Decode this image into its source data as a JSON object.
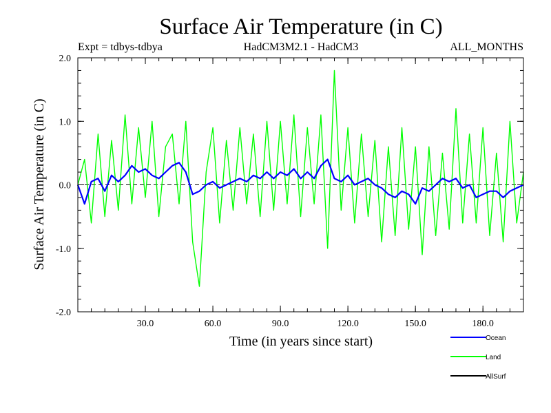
{
  "chart_data": {
    "type": "line",
    "title": "Surface Air Temperature (in C)",
    "subtitle_left": "Expt = tdbys-tdbya",
    "subtitle_center": "HadCM3M2.1 - HadCM3",
    "subtitle_right": "ALL_MONTHS",
    "xlabel": "Time (in years since start)",
    "ylabel": "Surface Air Temperature (in C)",
    "xlim": [
      0,
      198
    ],
    "ylim": [
      -2.0,
      2.0
    ],
    "x_ticks": [
      30,
      60,
      90,
      120,
      150,
      180
    ],
    "x_tick_labels": [
      "30.0",
      "60.0",
      "90.0",
      "120.0",
      "150.0",
      "180.0"
    ],
    "y_ticks": [
      -2.0,
      -1.0,
      0.0,
      1.0,
      2.0
    ],
    "y_tick_labels": [
      "-2.0",
      "-1.0",
      "0.0",
      "1.0",
      "2.0"
    ],
    "zero_line": "dashed",
    "legend_position": "bottom-right",
    "series": [
      {
        "name": "Land",
        "color": "#00ff00",
        "x": [
          0,
          3,
          6,
          9,
          12,
          15,
          18,
          21,
          24,
          27,
          30,
          33,
          36,
          39,
          42,
          45,
          48,
          51,
          54,
          57,
          60,
          63,
          66,
          69,
          72,
          75,
          78,
          81,
          84,
          87,
          90,
          93,
          96,
          99,
          102,
          105,
          108,
          111,
          114,
          117,
          120,
          123,
          126,
          129,
          132,
          135,
          138,
          141,
          144,
          147,
          150,
          153,
          156,
          159,
          162,
          165,
          168,
          171,
          174,
          177,
          180,
          183,
          186,
          189,
          192,
          195,
          198
        ],
        "values": [
          0.0,
          0.4,
          -0.6,
          0.8,
          -0.5,
          0.7,
          -0.4,
          1.1,
          -0.3,
          0.9,
          -0.2,
          1.0,
          -0.5,
          0.6,
          0.8,
          -0.3,
          1.0,
          -0.9,
          -1.6,
          0.2,
          0.9,
          -0.6,
          0.7,
          -0.4,
          0.9,
          -0.3,
          0.8,
          -0.5,
          1.0,
          -0.4,
          1.0,
          -0.3,
          1.1,
          -0.5,
          0.9,
          -0.3,
          1.1,
          -1.0,
          1.8,
          -0.4,
          0.9,
          -0.6,
          0.8,
          -0.5,
          0.7,
          -0.9,
          0.6,
          -0.8,
          0.9,
          -0.7,
          0.6,
          -1.1,
          0.6,
          -0.8,
          0.5,
          -0.7,
          1.2,
          -0.6,
          0.8,
          -0.6,
          0.9,
          -0.8,
          0.5,
          -0.9,
          1.0,
          -0.6,
          0.2
        ]
      },
      {
        "name": "Ocean",
        "color": "#0000ff",
        "x": [
          0,
          3,
          6,
          9,
          12,
          15,
          18,
          21,
          24,
          27,
          30,
          33,
          36,
          39,
          42,
          45,
          48,
          51,
          54,
          57,
          60,
          63,
          66,
          69,
          72,
          75,
          78,
          81,
          84,
          87,
          90,
          93,
          96,
          99,
          102,
          105,
          108,
          111,
          114,
          117,
          120,
          123,
          126,
          129,
          132,
          135,
          138,
          141,
          144,
          147,
          150,
          153,
          156,
          159,
          162,
          165,
          168,
          171,
          174,
          177,
          180,
          183,
          186,
          189,
          192,
          195,
          198
        ],
        "values": [
          0.0,
          -0.3,
          0.05,
          0.1,
          -0.1,
          0.15,
          0.05,
          0.15,
          0.3,
          0.2,
          0.25,
          0.15,
          0.1,
          0.2,
          0.3,
          0.35,
          0.2,
          -0.15,
          -0.1,
          0.0,
          0.05,
          -0.05,
          0.0,
          0.05,
          0.1,
          0.05,
          0.15,
          0.1,
          0.2,
          0.1,
          0.2,
          0.15,
          0.25,
          0.1,
          0.2,
          0.1,
          0.3,
          0.4,
          0.1,
          0.05,
          0.15,
          0.0,
          0.05,
          0.1,
          0.0,
          -0.05,
          -0.15,
          -0.2,
          -0.1,
          -0.15,
          -0.3,
          -0.05,
          -0.1,
          0.0,
          0.1,
          0.05,
          0.1,
          -0.05,
          0.0,
          -0.2,
          -0.15,
          -0.1,
          -0.1,
          -0.2,
          -0.1,
          -0.05,
          0.0
        ]
      },
      {
        "name": "AllSurf",
        "color": "#000000",
        "x": [],
        "values": []
      }
    ]
  }
}
